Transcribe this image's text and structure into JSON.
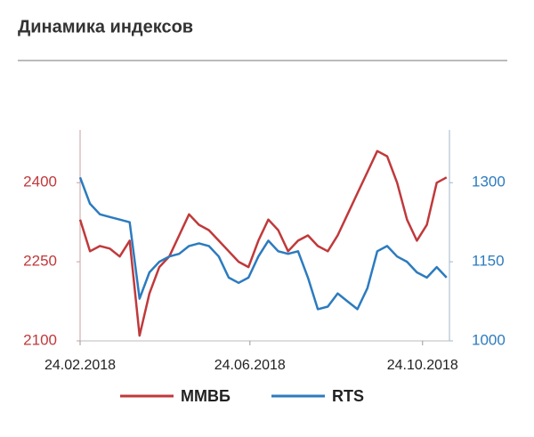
{
  "chart_data": {
    "type": "line",
    "title": "Динамика индексов",
    "x": [
      "24.02.2018",
      "03.03.2018",
      "10.03.2018",
      "17.03.2018",
      "24.03.2018",
      "31.03.2018",
      "07.04.2018",
      "14.04.2018",
      "21.04.2018",
      "28.04.2018",
      "05.05.2018",
      "12.05.2018",
      "19.05.2018",
      "26.05.2018",
      "02.06.2018",
      "09.06.2018",
      "16.06.2018",
      "23.06.2018",
      "30.06.2018",
      "07.07.2018",
      "14.07.2018",
      "21.07.2018",
      "28.07.2018",
      "04.08.2018",
      "11.08.2018",
      "18.08.2018",
      "25.08.2018",
      "01.09.2018",
      "08.09.2018",
      "15.09.2018",
      "22.09.2018",
      "29.09.2018",
      "06.10.2018",
      "13.10.2018",
      "20.10.2018",
      "27.10.2018",
      "03.11.2018",
      "10.11.2018"
    ],
    "xlim": [
      "24.02.2018",
      "12.11.2018"
    ],
    "xticks": [
      "24.02.2018",
      "24.06.2018",
      "24.10.2018"
    ],
    "ylim": [
      2100,
      2500
    ],
    "yticks": [
      2100,
      2250,
      2400
    ],
    "y2lim": [
      1000,
      1400
    ],
    "y2ticks": [
      1000,
      1150,
      1300
    ],
    "series": [
      {
        "name": "ММВБ",
        "color": "#c0393b",
        "axis": "y",
        "values": [
          2330,
          2270,
          2280,
          2275,
          2260,
          2290,
          2110,
          2190,
          2240,
          2260,
          2300,
          2340,
          2320,
          2310,
          2290,
          2270,
          2250,
          2240,
          2290,
          2330,
          2310,
          2270,
          2290,
          2300,
          2280,
          2270,
          2300,
          2340,
          2380,
          2420,
          2460,
          2450,
          2400,
          2330,
          2290,
          2320,
          2400,
          2410
        ]
      },
      {
        "name": "RTS",
        "color": "#2c7bbf",
        "axis": "y2",
        "values": [
          1310,
          1260,
          1240,
          1235,
          1230,
          1225,
          1080,
          1130,
          1150,
          1160,
          1165,
          1180,
          1185,
          1180,
          1160,
          1120,
          1110,
          1120,
          1160,
          1190,
          1170,
          1165,
          1170,
          1120,
          1060,
          1065,
          1090,
          1075,
          1060,
          1100,
          1170,
          1180,
          1160,
          1150,
          1130,
          1120,
          1140,
          1120
        ]
      }
    ]
  }
}
